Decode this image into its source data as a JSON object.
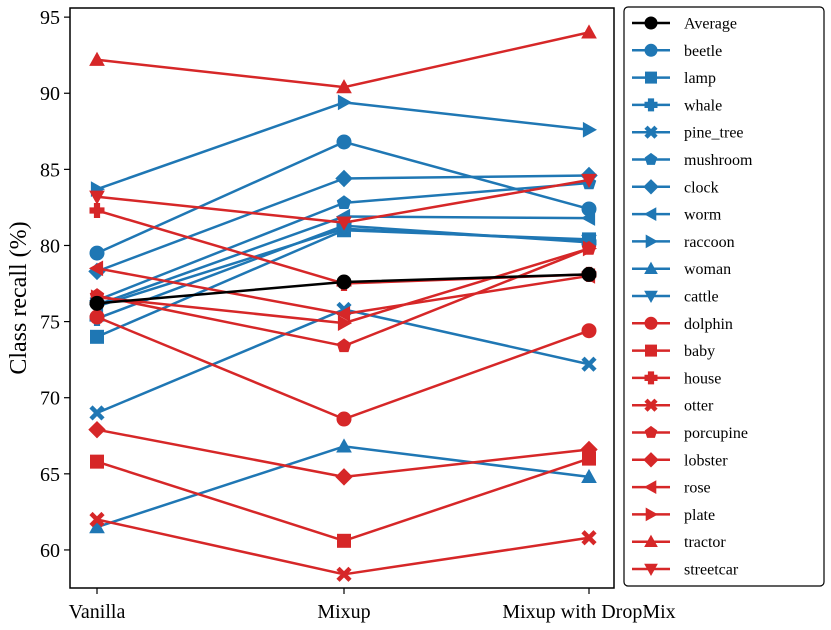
{
  "chart_data": {
    "type": "line",
    "title": "",
    "xlabel": "",
    "ylabel": "Class recall (%)",
    "categories": [
      "Vanilla",
      "Mixup",
      "Mixup with DropMix"
    ],
    "yticks": [
      "60",
      "65",
      "70",
      "75",
      "80",
      "85",
      "90",
      "95"
    ],
    "ylim": [
      57.5,
      95.6
    ],
    "grid": false,
    "legend_position": "right",
    "colors": {
      "average": "#000000",
      "blue": "#1f77b4",
      "red": "#d62728"
    },
    "series": [
      {
        "name": "Average",
        "color": "#000000",
        "marker": "circle",
        "values": [
          76.2,
          77.6,
          78.1
        ]
      },
      {
        "name": "beetle",
        "color": "#1f77b4",
        "marker": "circle",
        "values": [
          79.5,
          86.8,
          82.4
        ]
      },
      {
        "name": "lamp",
        "color": "#1f77b4",
        "marker": "square",
        "values": [
          74.0,
          81.0,
          80.4
        ]
      },
      {
        "name": "whale",
        "color": "#1f77b4",
        "marker": "plus",
        "values": [
          75.2,
          81.3,
          80.2
        ]
      },
      {
        "name": "pine_tree",
        "color": "#1f77b4",
        "marker": "x",
        "values": [
          69.0,
          75.8,
          72.2
        ]
      },
      {
        "name": "mushroom",
        "color": "#1f77b4",
        "marker": "pentagon",
        "values": [
          76.4,
          82.8,
          84.1
        ]
      },
      {
        "name": "clock",
        "color": "#1f77b4",
        "marker": "diamond",
        "values": [
          78.3,
          84.4,
          84.6
        ]
      },
      {
        "name": "worm",
        "color": "#1f77b4",
        "marker": "triangle-left",
        "values": [
          76.1,
          81.9,
          81.8
        ]
      },
      {
        "name": "raccoon",
        "color": "#1f77b4",
        "marker": "triangle-right",
        "values": [
          83.7,
          89.4,
          87.6
        ]
      },
      {
        "name": "woman",
        "color": "#1f77b4",
        "marker": "triangle-up",
        "values": [
          61.5,
          66.8,
          64.8
        ]
      },
      {
        "name": "cattle",
        "color": "#1f77b4",
        "marker": "triangle-down",
        "values": [
          76.0,
          81.1,
          80.3
        ]
      },
      {
        "name": "dolphin",
        "color": "#d62728",
        "marker": "circle",
        "values": [
          75.3,
          68.6,
          74.4
        ]
      },
      {
        "name": "baby",
        "color": "#d62728",
        "marker": "square",
        "values": [
          65.8,
          60.6,
          66.0
        ]
      },
      {
        "name": "house",
        "color": "#d62728",
        "marker": "plus",
        "values": [
          82.3,
          77.5,
          78.1
        ]
      },
      {
        "name": "otter",
        "color": "#d62728",
        "marker": "x",
        "values": [
          62.0,
          58.4,
          60.8
        ]
      },
      {
        "name": "porcupine",
        "color": "#d62728",
        "marker": "pentagon",
        "values": [
          76.7,
          73.4,
          79.8
        ]
      },
      {
        "name": "lobster",
        "color": "#d62728",
        "marker": "diamond",
        "values": [
          67.9,
          64.8,
          66.6
        ]
      },
      {
        "name": "rose",
        "color": "#d62728",
        "marker": "triangle-left",
        "values": [
          78.5,
          75.5,
          78.0
        ]
      },
      {
        "name": "plate",
        "color": "#d62728",
        "marker": "triangle-right",
        "values": [
          76.6,
          74.9,
          79.8
        ]
      },
      {
        "name": "tractor",
        "color": "#d62728",
        "marker": "triangle-up",
        "values": [
          92.2,
          90.4,
          94.0
        ]
      },
      {
        "name": "streetcar",
        "color": "#d62728",
        "marker": "triangle-down",
        "values": [
          83.2,
          81.5,
          84.3
        ]
      }
    ]
  }
}
